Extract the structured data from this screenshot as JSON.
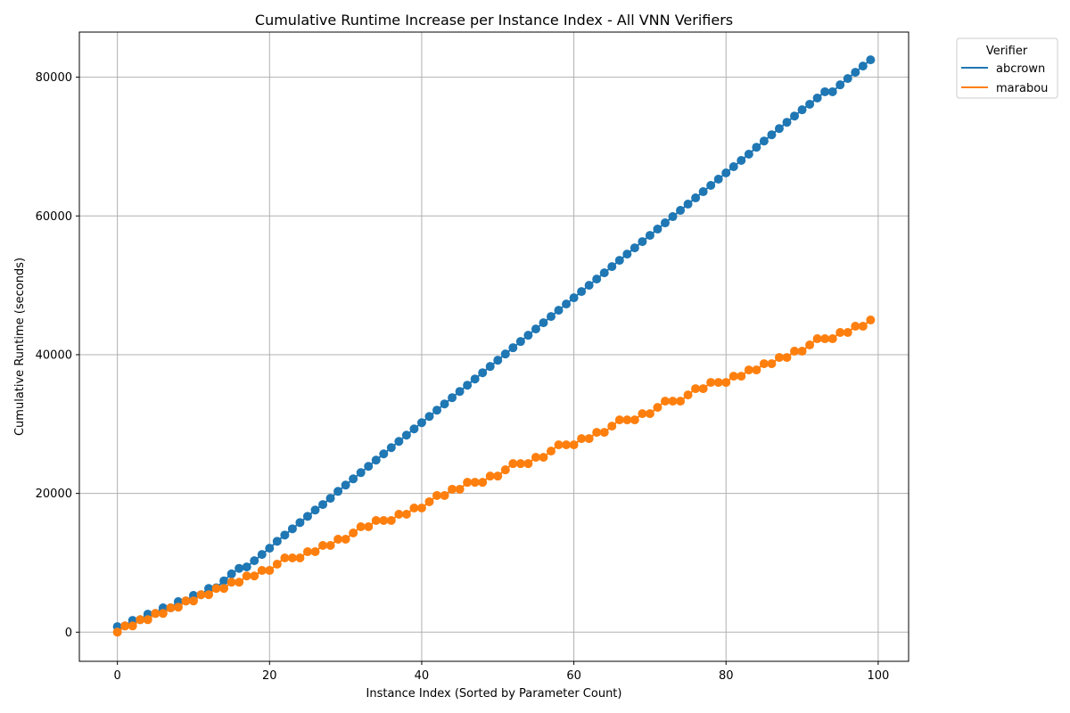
{
  "chart_data": {
    "type": "scatter",
    "title": "Cumulative Runtime Increase per Instance Index - All VNN Verifiers",
    "xlabel": "Instance Index (Sorted by Parameter Count)",
    "ylabel": "Cumulative Runtime (seconds)",
    "xlim": [
      -5,
      104
    ],
    "ylim": [
      -4200,
      86500
    ],
    "xticks": [
      0,
      20,
      40,
      60,
      80,
      100
    ],
    "yticks": [
      0,
      20000,
      40000,
      60000,
      80000
    ],
    "grid": true,
    "legend": {
      "title": "Verifier",
      "placement": "outside-top-right"
    },
    "series": [
      {
        "name": "abcrown",
        "color": "#1f77b4",
        "x": [
          0,
          1,
          2,
          3,
          4,
          5,
          6,
          7,
          8,
          9,
          10,
          11,
          12,
          13,
          14,
          15,
          16,
          17,
          18,
          19,
          20,
          21,
          22,
          23,
          24,
          25,
          26,
          27,
          28,
          29,
          30,
          31,
          32,
          33,
          34,
          35,
          36,
          37,
          38,
          39,
          40,
          41,
          42,
          43,
          44,
          45,
          46,
          47,
          48,
          49,
          50,
          51,
          52,
          53,
          54,
          55,
          56,
          57,
          58,
          59,
          60,
          61,
          62,
          63,
          64,
          65,
          66,
          67,
          68,
          69,
          70,
          71,
          72,
          73,
          74,
          75,
          76,
          77,
          78,
          79,
          80,
          81,
          82,
          83,
          84,
          85,
          86,
          87,
          88,
          89,
          90,
          91,
          92,
          93,
          94,
          95,
          96,
          97,
          98,
          99
        ],
        "y": [
          800,
          900,
          1700,
          1800,
          2600,
          2700,
          3500,
          3500,
          4400,
          4500,
          5300,
          5400,
          6300,
          6400,
          7400,
          8400,
          9200,
          9400,
          10300,
          11200,
          12100,
          13100,
          14000,
          14900,
          15800,
          16700,
          17600,
          18400,
          19300,
          20300,
          21200,
          22100,
          23000,
          23900,
          24800,
          25700,
          26600,
          27500,
          28400,
          29300,
          30200,
          31100,
          32000,
          32900,
          33800,
          34700,
          35600,
          36500,
          37400,
          38300,
          39200,
          40100,
          41000,
          41900,
          42800,
          43700,
          44600,
          45500,
          46400,
          47300,
          48200,
          49100,
          50000,
          50900,
          51800,
          52700,
          53600,
          54500,
          55400,
          56300,
          57200,
          58100,
          59000,
          59900,
          60800,
          61700,
          62600,
          63500,
          64400,
          65300,
          66200,
          67100,
          68000,
          68900,
          69900,
          70800,
          71700,
          72600,
          73500,
          74400,
          75300,
          76100,
          77000,
          77900,
          77900,
          78900,
          79800,
          80700,
          81600,
          82500
        ]
      },
      {
        "name": "marabou",
        "color": "#ff7f0e",
        "x": [
          0,
          1,
          2,
          3,
          4,
          5,
          6,
          7,
          8,
          9,
          10,
          11,
          12,
          13,
          14,
          15,
          16,
          17,
          18,
          19,
          20,
          21,
          22,
          23,
          24,
          25,
          26,
          27,
          28,
          29,
          30,
          31,
          32,
          33,
          34,
          35,
          36,
          37,
          38,
          39,
          40,
          41,
          42,
          43,
          44,
          45,
          46,
          47,
          48,
          49,
          50,
          51,
          52,
          53,
          54,
          55,
          56,
          57,
          58,
          59,
          60,
          61,
          62,
          63,
          64,
          65,
          66,
          67,
          68,
          69,
          70,
          71,
          72,
          73,
          74,
          75,
          76,
          77,
          78,
          79,
          80,
          81,
          82,
          83,
          84,
          85,
          86,
          87,
          88,
          89,
          90,
          91,
          92,
          93,
          94,
          95,
          96,
          97,
          98,
          99
        ],
        "y": [
          0,
          900,
          900,
          1800,
          1800,
          2700,
          2700,
          3500,
          3600,
          4500,
          4500,
          5400,
          5400,
          6300,
          6300,
          7200,
          7200,
          8100,
          8100,
          8900,
          8900,
          9800,
          10700,
          10700,
          10700,
          11600,
          11600,
          12500,
          12500,
          13400,
          13400,
          14300,
          15200,
          15200,
          16100,
          16100,
          16100,
          17000,
          17000,
          17900,
          17900,
          18800,
          19700,
          19700,
          20600,
          20600,
          21600,
          21600,
          21600,
          22500,
          22500,
          23400,
          24300,
          24300,
          24300,
          25200,
          25200,
          26100,
          27000,
          27000,
          27000,
          27900,
          27900,
          28800,
          28800,
          29700,
          30600,
          30600,
          30600,
          31500,
          31500,
          32400,
          33300,
          33300,
          33300,
          34200,
          35100,
          35100,
          36000,
          36000,
          36000,
          36900,
          36900,
          37800,
          37800,
          38700,
          38700,
          39600,
          39600,
          40500,
          40500,
          41400,
          42300,
          42300,
          42300,
          43200,
          43200,
          44100,
          44100,
          45000
        ]
      }
    ]
  }
}
